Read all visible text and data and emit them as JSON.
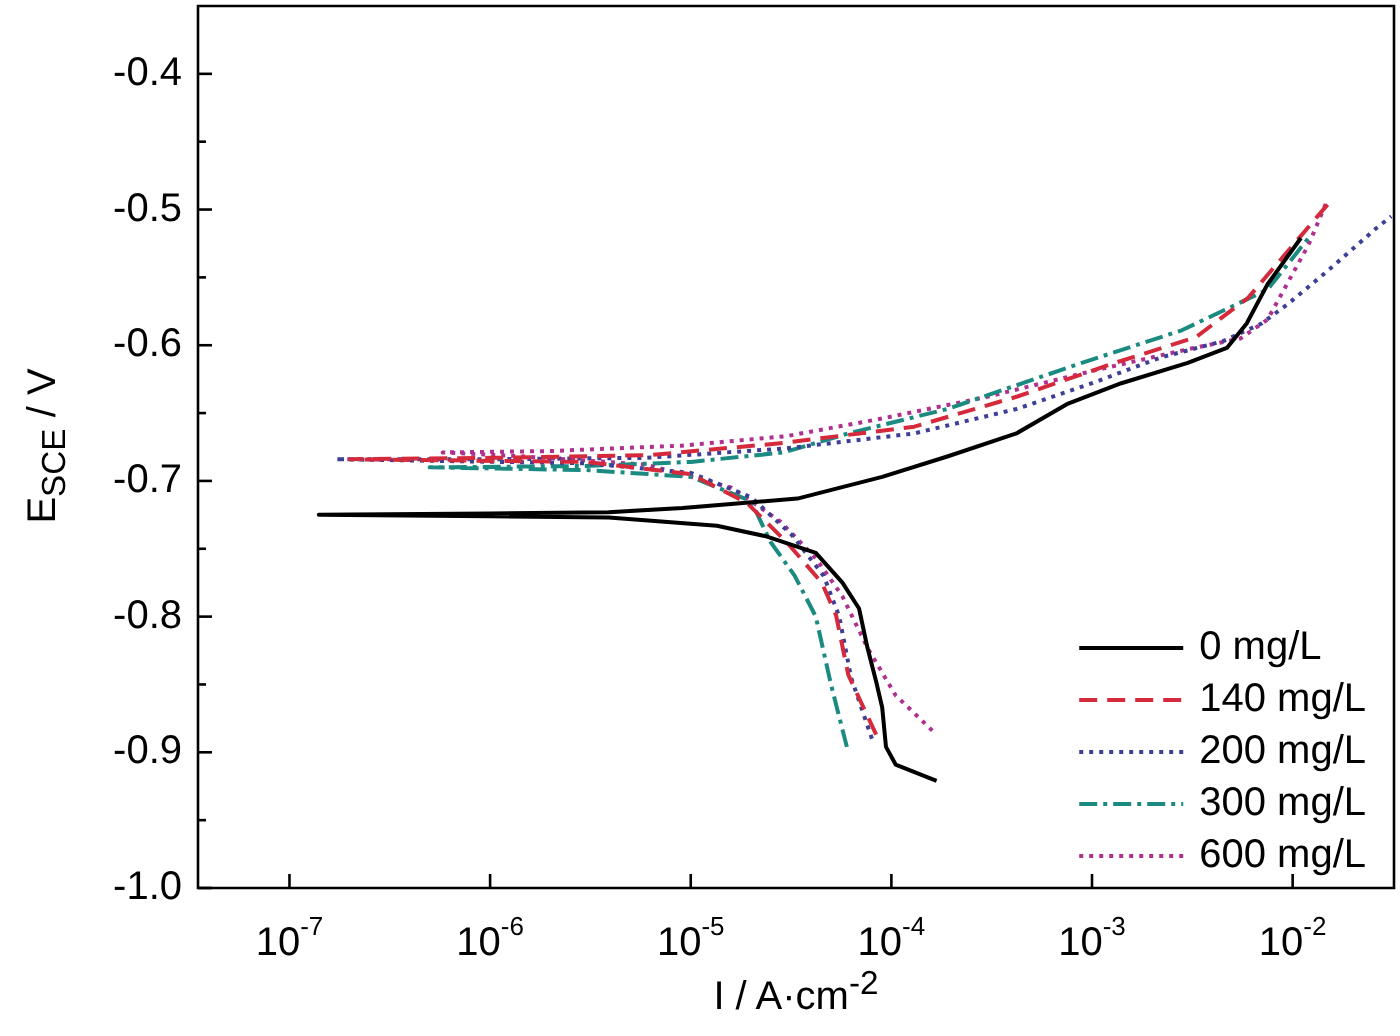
{
  "chart_data": {
    "type": "line",
    "xlabel": "I / A·cm$^{-2}$",
    "ylabel": "E$_{SCE}$ / V",
    "log": "x",
    "xlim": [
      3.5e-08,
      0.032
    ],
    "ylim": [
      -1.0,
      -0.35
    ],
    "xticks": [
      {
        "value": 1e-07,
        "label": "10$^{-7}$"
      },
      {
        "value": 1e-06,
        "label": "10$^{-6}$"
      },
      {
        "value": 1e-05,
        "label": "10$^{-5}$"
      },
      {
        "value": 0.0001,
        "label": "10$^{-4}$"
      },
      {
        "value": 0.001,
        "label": "10$^{-3}$"
      },
      {
        "value": 0.01,
        "label": "10$^{-2}$"
      }
    ],
    "yticks": [
      {
        "value": -1.0,
        "label": "-1.0"
      },
      {
        "value": -0.95,
        "label": null
      },
      {
        "value": -0.9,
        "label": "-0.9"
      },
      {
        "value": -0.85,
        "label": null
      },
      {
        "value": -0.8,
        "label": "-0.8"
      },
      {
        "value": -0.75,
        "label": null
      },
      {
        "value": -0.7,
        "label": "-0.7"
      },
      {
        "value": -0.65,
        "label": null
      },
      {
        "value": -0.6,
        "label": "-0.6"
      },
      {
        "value": -0.55,
        "label": null
      },
      {
        "value": -0.5,
        "label": "-0.5"
      },
      {
        "value": -0.45,
        "label": null
      },
      {
        "value": -0.4,
        "label": "-0.4"
      }
    ],
    "legend": "bottom right",
    "series": [
      {
        "name": "0 mg/L",
        "color": "#000000",
        "line_style": "solid",
        "x": [
          0.000168,
          0.000105,
          9.4e-05,
          9e-05,
          8.4e-05,
          7.6e-05,
          6.9e-05,
          5.7e-05,
          4.2e-05,
          2.4e-05,
          1.35e-05,
          3.9e-06,
          1e-06,
          1.4e-07,
          1e-06,
          3.9e-06,
          9.1e-06,
          3.4e-05,
          9e-05,
          0.00019,
          0.00042,
          0.00076,
          0.0014,
          0.003,
          0.0047,
          0.0059,
          0.0075,
          0.011
        ],
        "values": [
          -0.921,
          -0.909,
          -0.896,
          -0.867,
          -0.848,
          -0.823,
          -0.794,
          -0.775,
          -0.753,
          -0.741,
          -0.733,
          -0.727,
          -0.726,
          -0.725,
          -0.724,
          -0.723,
          -0.72,
          -0.713,
          -0.697,
          -0.682,
          -0.665,
          -0.643,
          -0.628,
          -0.613,
          -0.602,
          -0.584,
          -0.555,
          -0.521
        ]
      },
      {
        "name": "140 mg/L",
        "color": "#d42a3c",
        "line_style": "dashed",
        "x": [
          8.4e-05,
          6.1e-05,
          5.3e-05,
          4.5e-05,
          3e-05,
          1.9e-05,
          1e-05,
          3e-06,
          2e-07,
          1e-06,
          6.2e-06,
          2.9e-05,
          0.00013,
          0.00042,
          0.0013,
          0.0033,
          0.006,
          0.015
        ],
        "values": [
          -0.887,
          -0.843,
          -0.799,
          -0.775,
          -0.745,
          -0.716,
          -0.695,
          -0.686,
          -0.684,
          -0.683,
          -0.681,
          -0.672,
          -0.66,
          -0.638,
          -0.613,
          -0.594,
          -0.565,
          -0.496
        ]
      },
      {
        "name": "200 mg/L",
        "color": "#3d3f96",
        "line_style": "dotted",
        "x": [
          8e-05,
          6.3e-05,
          5.5e-05,
          4.6e-05,
          3.2e-05,
          2e-05,
          1e-05,
          3e-06,
          1.7e-07,
          1e-06,
          6e-06,
          3e-05,
          0.00013,
          0.00042,
          0.001,
          0.0022,
          0.0045,
          0.007,
          0.0094,
          0.015,
          0.026,
          0.031
        ],
        "values": [
          -0.89,
          -0.845,
          -0.8,
          -0.77,
          -0.74,
          -0.712,
          -0.694,
          -0.687,
          -0.684,
          -0.684,
          -0.683,
          -0.676,
          -0.665,
          -0.647,
          -0.628,
          -0.609,
          -0.597,
          -0.584,
          -0.57,
          -0.545,
          -0.514,
          -0.505
        ]
      },
      {
        "name": "300 mg/L",
        "color": "#1b8a80",
        "line_style": "dashdot",
        "x": [
          6e-05,
          5e-05,
          4.2e-05,
          3.3e-05,
          2.5e-05,
          2e-05,
          1e-05,
          3e-06,
          5e-07,
          3e-06,
          1e-05,
          2.9e-05,
          6.1e-05,
          0.00019,
          0.00089,
          0.0028,
          0.0075,
          0.012
        ],
        "values": [
          -0.896,
          -0.85,
          -0.8,
          -0.77,
          -0.745,
          -0.715,
          -0.697,
          -0.692,
          -0.69,
          -0.689,
          -0.686,
          -0.679,
          -0.665,
          -0.647,
          -0.613,
          -0.589,
          -0.559,
          -0.521
        ]
      },
      {
        "name": "600 mg/L",
        "color": "#b0308f",
        "line_style": "dotted",
        "x": [
          0.00016,
          0.000105,
          7.6e-05,
          5.7e-05,
          4.2e-05,
          2.8e-05,
          1.6e-05,
          6e-06,
          1.5e-06,
          5.8e-07,
          2e-06,
          9e-06,
          3e-05,
          9e-05,
          0.0003,
          0.001,
          0.003,
          0.0055,
          0.0075,
          0.012,
          0.015
        ],
        "values": [
          -0.884,
          -0.858,
          -0.823,
          -0.785,
          -0.757,
          -0.73,
          -0.705,
          -0.688,
          -0.682,
          -0.679,
          -0.678,
          -0.674,
          -0.667,
          -0.654,
          -0.638,
          -0.619,
          -0.603,
          -0.595,
          -0.581,
          -0.526,
          -0.492
        ]
      }
    ]
  }
}
